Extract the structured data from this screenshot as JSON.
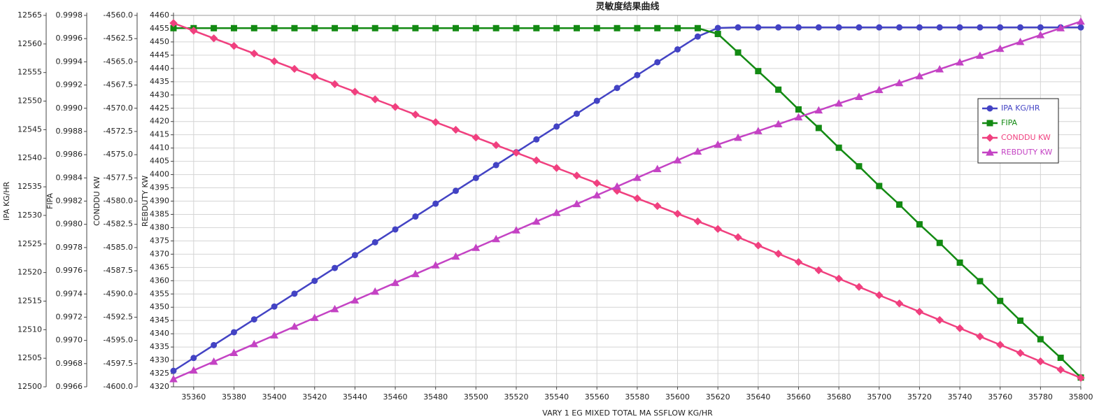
{
  "chart_data": {
    "type": "line",
    "title": "灵敏度结果曲线",
    "xlabel": "VARY   1 EG MIXED TOTAL MA SSFLOW KG/HR",
    "ylabel": "IPA KG/HR",
    "y2label": "FIPA",
    "y3label": "CONDDU KW",
    "y4label": "REBDUTY KW",
    "x": [
      35350,
      35360,
      35370,
      35380,
      35390,
      35400,
      35410,
      35420,
      35430,
      35440,
      35450,
      35460,
      35470,
      35480,
      35490,
      35500,
      35510,
      35520,
      35530,
      35540,
      35550,
      35560,
      35570,
      35580,
      35590,
      35600,
      35610,
      35620,
      35630,
      35640,
      35650,
      35660,
      35670,
      35680,
      35690,
      35700,
      35710,
      35720,
      35730,
      35740,
      35750,
      35760,
      35770,
      35780,
      35790,
      35800
    ],
    "xlim": [
      35350,
      35800
    ],
    "xticks": [
      35360,
      35380,
      35400,
      35420,
      35440,
      35460,
      35480,
      35500,
      35520,
      35540,
      35560,
      35580,
      35600,
      35620,
      35640,
      35660,
      35680,
      35700,
      35720,
      35740,
      35760,
      35780,
      35800
    ],
    "ylim": [
      12500,
      12565
    ],
    "yticks": [
      12500,
      12505,
      12510,
      12515,
      12520,
      12525,
      12530,
      12535,
      12540,
      12545,
      12550,
      12555,
      12560,
      12565
    ],
    "y2lim": [
      0.9966,
      0.9998
    ],
    "y2ticks": [
      0.9966,
      0.9968,
      {
        "value": 0.997,
        "label": "0.9970"
      },
      0.9972,
      0.9974,
      0.9976,
      0.9978,
      {
        "value": 0.998,
        "label": "0.9980"
      },
      0.9982,
      0.9984,
      0.9986,
      0.9988,
      {
        "value": 0.999,
        "label": "0.9990"
      },
      0.9992,
      0.9994,
      0.9996,
      0.9998
    ],
    "y3lim": [
      -4600,
      -4560
    ],
    "y3ticks": [
      {
        "value": -4600,
        "label": "-4600.0"
      },
      -4597.5,
      {
        "value": -4595,
        "label": "-4595.0"
      },
      -4592.5,
      {
        "value": -4590,
        "label": "-4590.0"
      },
      -4587.5,
      {
        "value": -4585,
        "label": "-4585.0"
      },
      -4582.5,
      {
        "value": -4580,
        "label": "-4580.0"
      },
      -4577.5,
      {
        "value": -4575,
        "label": "-4575.0"
      },
      -4572.5,
      {
        "value": -4570,
        "label": "-4570.0"
      },
      -4567.5,
      {
        "value": -4565,
        "label": "-4565.0"
      },
      -4562.5,
      {
        "value": -4560,
        "label": "-4560.0"
      }
    ],
    "y4lim": [
      4320,
      4460
    ],
    "y4ticks": [
      4320,
      4325,
      4330,
      4335,
      4340,
      4345,
      4350,
      4355,
      4360,
      4365,
      4370,
      4375,
      4380,
      4385,
      4390,
      4395,
      4400,
      4405,
      4410,
      4415,
      4420,
      4425,
      4430,
      4435,
      4440,
      4445,
      4450,
      4455,
      4460
    ],
    "grid": true,
    "legend": "right",
    "series": [
      {
        "name": "IPA KG/HR",
        "color": "#4343c4",
        "marker": "circle",
        "axis": "y",
        "values": [
          12502.8,
          12505.05,
          12507.3,
          12509.55,
          12511.8,
          12514.05,
          12516.3,
          12518.55,
          12520.8,
          12523.05,
          12525.3,
          12527.55,
          12529.8,
          12532.05,
          12534.3,
          12536.55,
          12538.8,
          12541.05,
          12543.3,
          12545.55,
          12547.8,
          12550.05,
          12552.3,
          12554.55,
          12556.8,
          12559.05,
          12561.3,
          12562.8,
          12562.9,
          12562.9,
          12562.9,
          12562.9,
          12562.9,
          12562.9,
          12562.9,
          12562.9,
          12562.9,
          12562.9,
          12562.9,
          12562.9,
          12562.9,
          12562.9,
          12562.9,
          12562.9,
          12562.9,
          12562.9
        ]
      },
      {
        "name": "FIPA",
        "color": "#138a13",
        "marker": "square",
        "axis": "y2",
        "values": [
          0.99969,
          0.99969,
          0.99969,
          0.99969,
          0.99969,
          0.99969,
          0.99969,
          0.99969,
          0.99969,
          0.99969,
          0.99969,
          0.99969,
          0.99969,
          0.99969,
          0.99969,
          0.99969,
          0.99969,
          0.99969,
          0.99969,
          0.99969,
          0.99969,
          0.99969,
          0.99969,
          0.99969,
          0.99969,
          0.99969,
          0.99969,
          0.99964,
          0.99948,
          0.99932,
          0.99916,
          0.99899,
          0.99883,
          0.99866,
          0.9985,
          0.99833,
          0.99817,
          0.998,
          0.99784,
          0.99767,
          0.99751,
          0.99734,
          0.99717,
          0.99701,
          0.99685,
          0.99668
        ]
      },
      {
        "name": "CONDDU KW",
        "color": "#f0407f",
        "marker": "diamond",
        "axis": "y3",
        "values": [
          -4560.83,
          -4561.65,
          -4562.47,
          -4563.29,
          -4564.11,
          -4564.94,
          -4565.76,
          -4566.58,
          -4567.4,
          -4568.22,
          -4569.04,
          -4569.86,
          -4570.68,
          -4571.5,
          -4572.32,
          -4573.15,
          -4573.97,
          -4574.79,
          -4575.61,
          -4576.43,
          -4577.25,
          -4578.07,
          -4578.89,
          -4579.71,
          -4580.53,
          -4581.36,
          -4582.18,
          -4583,
          -4583.89,
          -4584.78,
          -4585.67,
          -4586.56,
          -4587.45,
          -4588.35,
          -4589.24,
          -4590.13,
          -4591.02,
          -4591.91,
          -4592.8,
          -4593.69,
          -4594.58,
          -4595.47,
          -4596.36,
          -4597.26,
          -4598.15,
          -4599.04
        ]
      },
      {
        "name": "REBDUTY KW",
        "color": "#c443c4",
        "marker": "triangle",
        "axis": "y4",
        "values": [
          4322.9,
          4326.2,
          4329.5,
          4332.8,
          4336.1,
          4339.4,
          4342.7,
          4346,
          4349.3,
          4352.6,
          4355.9,
          4359.2,
          4362.5,
          4365.8,
          4369.1,
          4372.4,
          4375.7,
          4379,
          4382.3,
          4385.6,
          4388.9,
          4392.2,
          4395.5,
          4398.8,
          4402.1,
          4405.4,
          4408.7,
          4411.3,
          4413.9,
          4416.4,
          4419,
          4421.6,
          4424.2,
          4426.8,
          4429.3,
          4431.9,
          4434.5,
          4437.1,
          4439.7,
          4442.3,
          4444.8,
          4447.4,
          4450,
          4452.6,
          4455.2,
          4457.7
        ]
      }
    ]
  }
}
